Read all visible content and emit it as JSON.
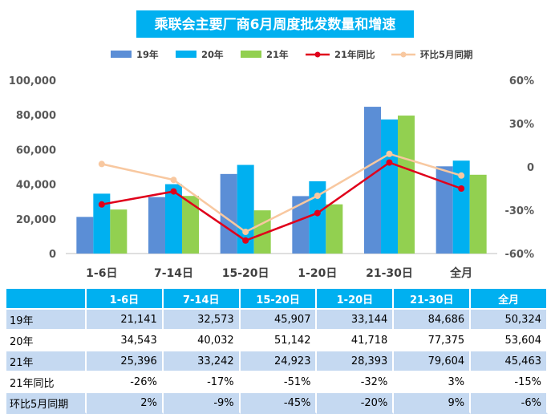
{
  "chart_data": {
    "type": "bar",
    "title": "乘联会主要厂商6月周度批发数量和增速",
    "categories": [
      "1-6日",
      "7-14日",
      "15-20日",
      "1-20日",
      "21-30日",
      "全月"
    ],
    "series": [
      {
        "name": "19年",
        "type": "bar",
        "axis": "left",
        "color": "#5b8ed6",
        "values": [
          21141,
          32573,
          45907,
          33144,
          84686,
          50324
        ]
      },
      {
        "name": "20年",
        "type": "bar",
        "axis": "left",
        "color": "#00b0f0",
        "values": [
          34543,
          40032,
          51142,
          41718,
          77375,
          53604
        ]
      },
      {
        "name": "21年",
        "type": "bar",
        "axis": "left",
        "color": "#92d050",
        "values": [
          25396,
          33242,
          24923,
          28393,
          79604,
          45463
        ]
      },
      {
        "name": "21年同比",
        "type": "line",
        "axis": "right",
        "color": "#e0001b",
        "values": [
          -26,
          -17,
          -51,
          -32,
          3,
          -15
        ]
      },
      {
        "name": "环比5月同期",
        "type": "line",
        "axis": "right",
        "color": "#f8c8a0",
        "values": [
          2,
          -9,
          -45,
          -20,
          9,
          -6
        ]
      }
    ],
    "y_left": {
      "min": 0,
      "max": 100000,
      "ticks": [
        "100,000",
        "80,000",
        "60,000",
        "40,000",
        "20,000",
        "0"
      ]
    },
    "y_right": {
      "min": -60,
      "max": 60,
      "ticks": [
        "60%",
        "30%",
        "0",
        "-30%",
        "-60%"
      ]
    },
    "grid": false,
    "legend": "top-center"
  },
  "table": {
    "headers": [
      "",
      "1-6日",
      "7-14日",
      "15-20日",
      "1-20日",
      "21-30日",
      "全月"
    ],
    "rows": [
      {
        "label": "19年",
        "cells": [
          "21,141",
          "32,573",
          "45,907",
          "33,144",
          "84,686",
          "50,324"
        ]
      },
      {
        "label": "20年",
        "cells": [
          "34,543",
          "40,032",
          "51,142",
          "41,718",
          "77,375",
          "53,604"
        ]
      },
      {
        "label": "21年",
        "cells": [
          "25,396",
          "33,242",
          "24,923",
          "28,393",
          "79,604",
          "45,463"
        ]
      },
      {
        "label": "21年同比",
        "cells": [
          "-26%",
          "-17%",
          "-51%",
          "-32%",
          "3%",
          "-15%"
        ]
      },
      {
        "label": "环比5月同期",
        "cells": [
          "2%",
          "-9%",
          "-45%",
          "-20%",
          "9%",
          "-6%"
        ]
      }
    ]
  }
}
